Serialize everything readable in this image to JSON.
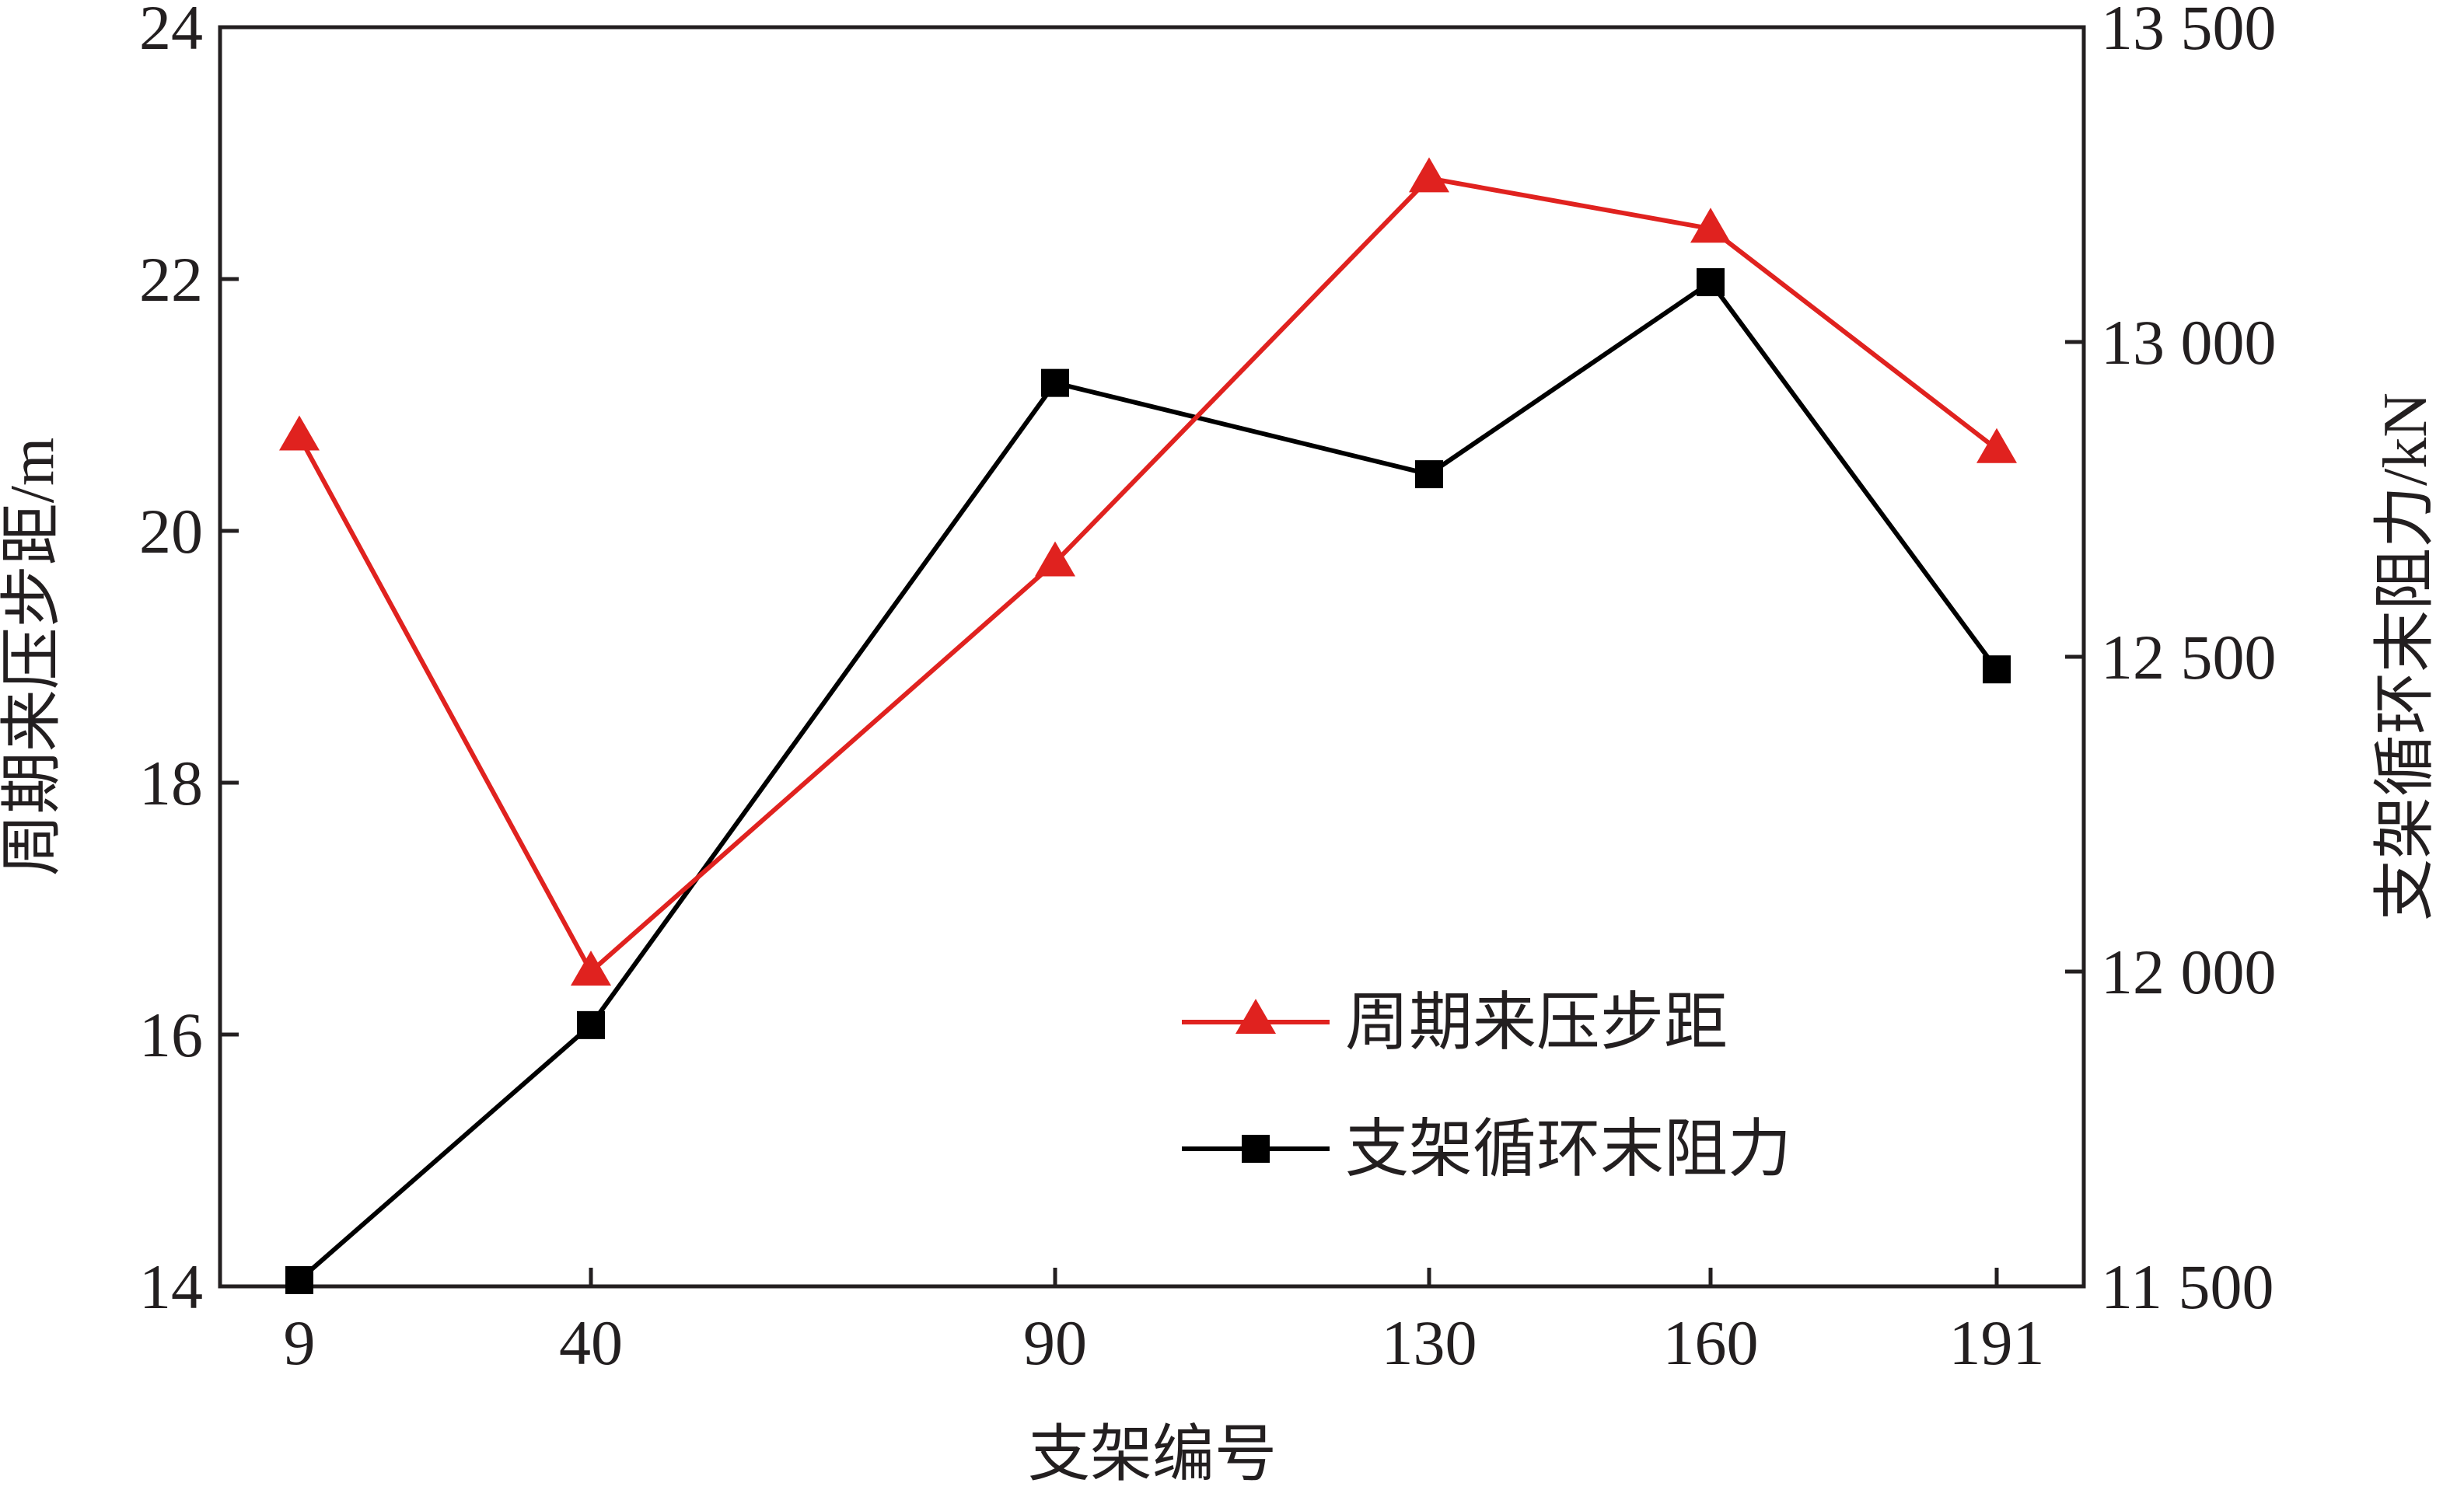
{
  "chart_data": {
    "type": "line",
    "title": "",
    "xlabel": "支架编号",
    "ylabel_left": "周期来压步距/m",
    "ylabel_right": "支架循环末阻力/kN",
    "categories": [
      9,
      40,
      90,
      130,
      160,
      191
    ],
    "x_ticks": [
      "9",
      "40",
      "90",
      "130",
      "160",
      "191"
    ],
    "y_left_range": [
      14,
      24
    ],
    "y_left_ticks": [
      "14",
      "16",
      "18",
      "20",
      "22",
      "24"
    ],
    "y_right_range": [
      11500,
      13500
    ],
    "y_right_ticks": [
      "11 500",
      "12 000",
      "12 500",
      "13 000",
      "13 500"
    ],
    "grid": false,
    "legend_position": "bottom-right",
    "series": [
      {
        "name": "周期来压步距",
        "axis": "left",
        "color": "#e0221f",
        "marker": "triangle",
        "values": [
          20.75,
          16.5,
          19.75,
          22.8,
          22.4,
          20.65
        ]
      },
      {
        "name": "支架循环末阻力",
        "axis": "right",
        "color": "#000000",
        "marker": "square",
        "values": [
          11510,
          11915,
          12935,
          12790,
          13095,
          12480
        ]
      }
    ]
  }
}
